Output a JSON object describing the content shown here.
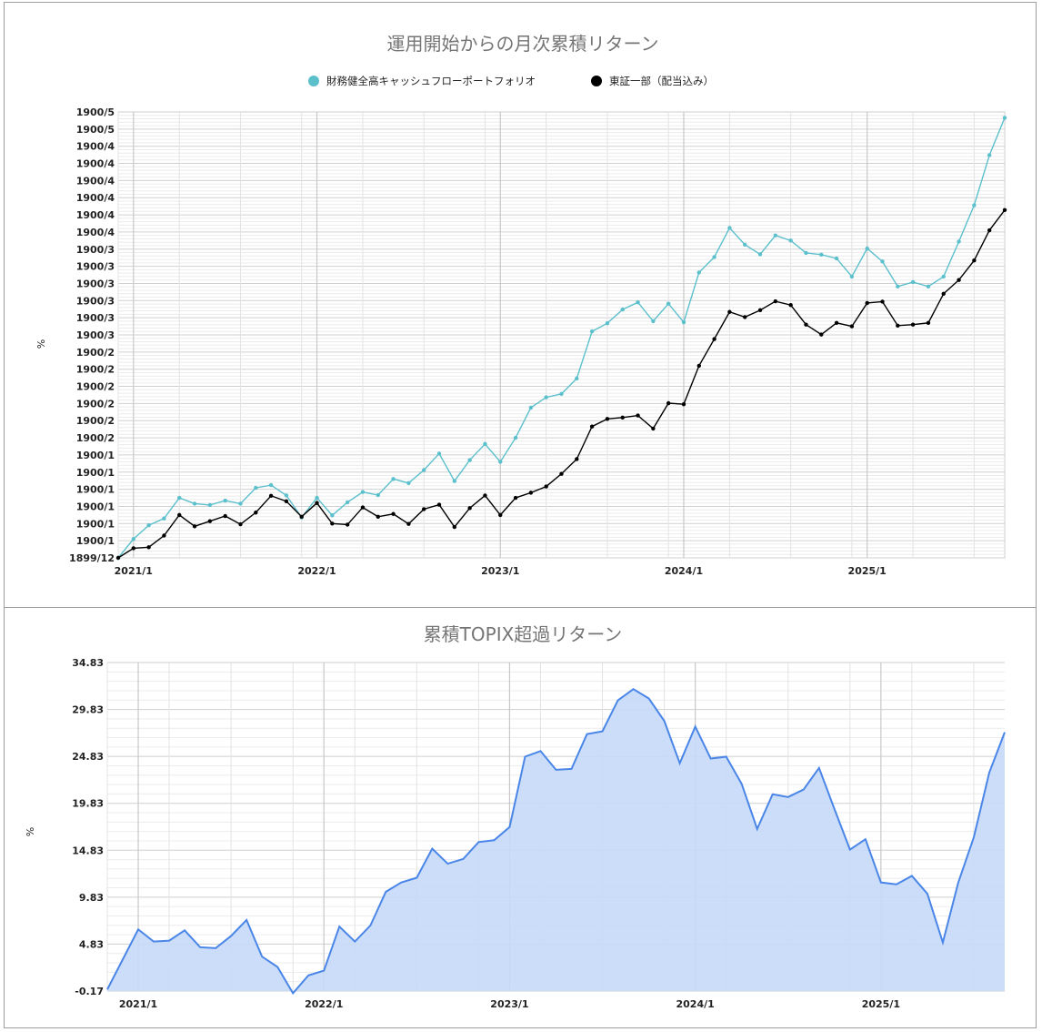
{
  "chart_data": [
    {
      "type": "line",
      "title": "運用開始からの月次累積リターン",
      "ylabel": "%",
      "x_tick_labels": [
        "2021/1",
        "2022/1",
        "2023/1",
        "2024/1",
        "2025/1"
      ],
      "y_tick_labels": [
        "1899/12",
        "1900/1",
        "1900/1",
        "1900/1",
        "1900/1",
        "1900/1",
        "1900/1",
        "1900/2",
        "1900/2",
        "1900/2",
        "1900/2",
        "1900/2",
        "1900/2",
        "1900/3",
        "1900/3",
        "1900/3",
        "1900/3",
        "1900/3",
        "1900/3",
        "1900/4",
        "1900/4",
        "1900/4",
        "1900/4",
        "1900/4",
        "1900/4",
        "1900/5",
        "1900/5"
      ],
      "ylim": [
        0,
        130
      ],
      "grid": true,
      "legend_position": "top",
      "series": [
        {
          "name": "財務健全高キャッシュフローポートフォリオ",
          "color": "#5bc0cc",
          "values": [
            0,
            5.5,
            9.5,
            11.5,
            17.5,
            15.8,
            15.4,
            16.7,
            15.8,
            20.4,
            21.2,
            18.2,
            11.8,
            17.5,
            12.4,
            16.2,
            19.2,
            18.3,
            23.0,
            21.8,
            25.6,
            30.4,
            22.4,
            28.5,
            33.2,
            28.0,
            35.0,
            43.8,
            46.8,
            47.8,
            52.3,
            66.0,
            68.4,
            72.4,
            74.5,
            69.0,
            74.1,
            68.7,
            83.2,
            87.7,
            96.2,
            91.3,
            88.5,
            94.0,
            92.5,
            88.9,
            88.4,
            87.3,
            82.0,
            90.2,
            86.4,
            79.1,
            80.4,
            79.1,
            82.0,
            92.2,
            102.8,
            117.4,
            128.3
          ],
          "marker": true
        },
        {
          "name": "東証一部（配当込み）",
          "color": "#000000",
          "values": [
            0,
            2.8,
            3.1,
            6.5,
            12.5,
            9.2,
            10.7,
            12.2,
            9.8,
            13.2,
            18.1,
            16.5,
            12.0,
            16.0,
            10.0,
            9.7,
            14.7,
            12.0,
            12.8,
            9.9,
            14.2,
            15.5,
            9.0,
            14.5,
            18.2,
            12.5,
            17.5,
            19.0,
            20.8,
            24.5,
            28.8,
            38.3,
            40.5,
            40.9,
            41.5,
            37.7,
            45.1,
            44.8,
            56.0,
            63.8,
            71.7,
            70.2,
            72.2,
            74.8,
            73.7,
            68.0,
            65.1,
            68.5,
            67.5,
            74.3,
            74.7,
            67.7,
            68.0,
            68.5,
            77.0,
            81.0,
            86.7,
            95.5,
            101.4
          ],
          "marker": true
        }
      ]
    },
    {
      "type": "area",
      "title": "累積TOPIX超過リターン",
      "ylabel": "%",
      "x_tick_labels": [
        "2021/1",
        "2022/1",
        "2023/1",
        "2024/1",
        "2025/1"
      ],
      "y_tick_labels": [
        "-0.17",
        "4.83",
        "9.83",
        "14.83",
        "19.83",
        "24.83",
        "29.83",
        "34.83"
      ],
      "ylim": [
        -0.17,
        34.83
      ],
      "grid": true,
      "color": "#4a86e8",
      "fill": "#c5d9f7",
      "values": [
        0,
        3.2,
        6.4,
        5.1,
        5.2,
        6.3,
        4.5,
        4.4,
        5.7,
        7.4,
        3.5,
        2.4,
        -0.4,
        1.5,
        2.0,
        6.7,
        5.1,
        6.8,
        10.4,
        11.4,
        11.9,
        15.0,
        13.4,
        13.9,
        15.7,
        15.9,
        17.3,
        24.8,
        25.4,
        23.4,
        23.5,
        27.2,
        27.5,
        30.8,
        32.0,
        31.0,
        28.6,
        24.1,
        28.0,
        24.6,
        24.8,
        21.9,
        17.1,
        20.8,
        20.5,
        21.3,
        23.6,
        19.2,
        14.9,
        16.0,
        11.4,
        11.2,
        12.1,
        10.2,
        5.0,
        11.4,
        16.2,
        23.1,
        27.4
      ]
    }
  ]
}
